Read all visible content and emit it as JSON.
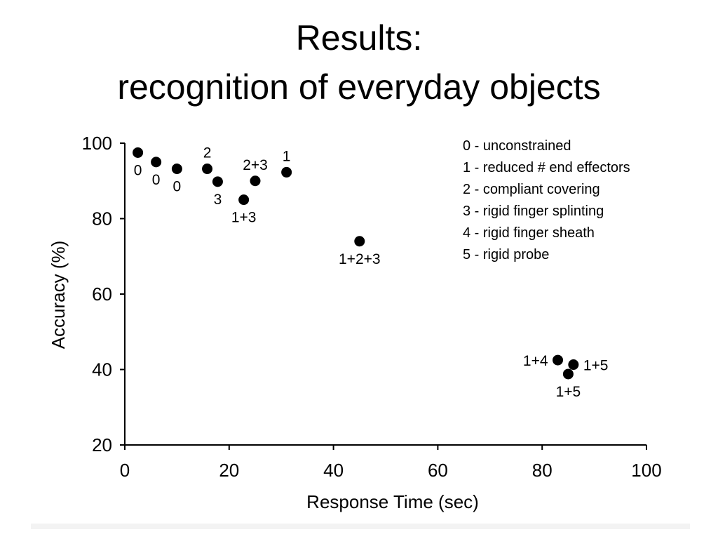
{
  "slide": {
    "title_line_1": "Results:",
    "title_line_2": "recognition of everyday objects"
  },
  "colors": {
    "background": "#ffffff",
    "marker": "#000000",
    "axis": "#000000"
  },
  "chart_data": {
    "type": "scatter",
    "title": "",
    "xlabel": "Response Time (sec)",
    "ylabel": "Accuracy (%)",
    "xlim": [
      0,
      100
    ],
    "ylim": [
      20,
      100
    ],
    "xticks": [
      0,
      20,
      40,
      60,
      80,
      100
    ],
    "yticks": [
      20,
      40,
      60,
      80,
      100
    ],
    "grid": false,
    "legend_position": "top-right",
    "legend": [
      "0 - unconstrained",
      "1 - reduced # end effectors",
      "2 - compliant covering",
      "3 - rigid finger splinting",
      "4 - rigid finger sheath",
      "5 - rigid probe"
    ],
    "points": [
      {
        "x": 2.5,
        "y": 97.5,
        "label": "0",
        "label_pos": "below"
      },
      {
        "x": 6,
        "y": 95,
        "label": "0",
        "label_pos": "below"
      },
      {
        "x": 10,
        "y": 93.2,
        "label": "0",
        "label_pos": "below"
      },
      {
        "x": 15.8,
        "y": 93.2,
        "label": "2",
        "label_pos": "above"
      },
      {
        "x": 17.8,
        "y": 89.8,
        "label": "3",
        "label_pos": "below"
      },
      {
        "x": 22.8,
        "y": 85,
        "label": "1+3",
        "label_pos": "below"
      },
      {
        "x": 25,
        "y": 90,
        "label": "2+3",
        "label_pos": "above"
      },
      {
        "x": 31,
        "y": 92.3,
        "label": "1",
        "label_pos": "above"
      },
      {
        "x": 45,
        "y": 74,
        "label": "1+2+3",
        "label_pos": "below"
      },
      {
        "x": 83,
        "y": 42.5,
        "label": "1+4",
        "label_pos": "left"
      },
      {
        "x": 86,
        "y": 41.3,
        "label": "1+5",
        "label_pos": "right"
      },
      {
        "x": 85,
        "y": 38.8,
        "label": "1+5",
        "label_pos": "below"
      }
    ]
  }
}
